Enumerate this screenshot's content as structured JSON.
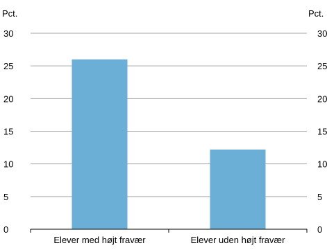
{
  "chart_data": {
    "type": "bar",
    "categories": [
      "Elever med højt fravær",
      "Elever uden højt fravær"
    ],
    "values": [
      26.0,
      12.2
    ],
    "left_axis_unit": "Pct.",
    "right_axis_unit": "Pct.",
    "ylim": [
      0,
      30
    ],
    "yticks": [
      0,
      5,
      10,
      15,
      20,
      25,
      30
    ],
    "grid": true,
    "bar_color": "#6baed6",
    "grid_color": "#a6a6a6"
  }
}
